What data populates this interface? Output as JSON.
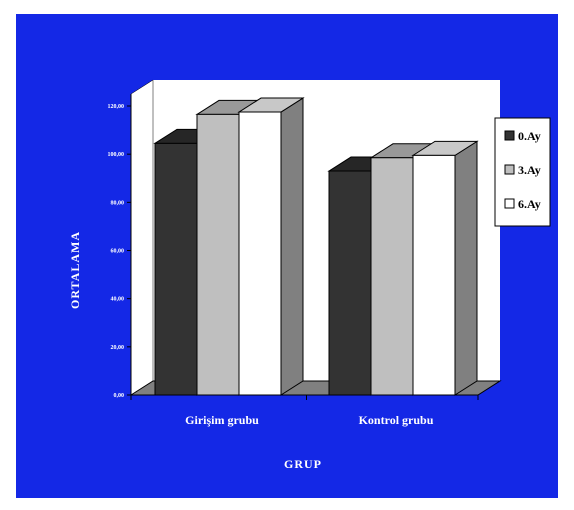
{
  "chart_data": {
    "type": "bar",
    "title": "",
    "xlabel": "GRUP",
    "ylabel": "ORTALAMA",
    "categories": [
      "Girişim grubu",
      "Kontrol grubu"
    ],
    "series": [
      {
        "name": "0.Ay",
        "values": [
          104.5,
          93.0
        ],
        "color": "#333333"
      },
      {
        "name": "3.Ay",
        "values": [
          116.5,
          98.5
        ],
        "color": "#bfbfbf"
      },
      {
        "name": "6.Ay",
        "values": [
          117.5,
          99.5
        ],
        "color": "#ffffff"
      }
    ],
    "ylim": [
      0,
      120
    ],
    "yticks": [
      "0,00",
      "20,00",
      "40,00",
      "60,00",
      "80,00",
      "100,00",
      "120,00"
    ],
    "style": "3d-clustered-bar",
    "legend": "right",
    "grid": false,
    "colors": {
      "frame_background": "#1428e6",
      "wall": "#ffffff",
      "floor": "#808080",
      "text": "#ffffff"
    }
  }
}
